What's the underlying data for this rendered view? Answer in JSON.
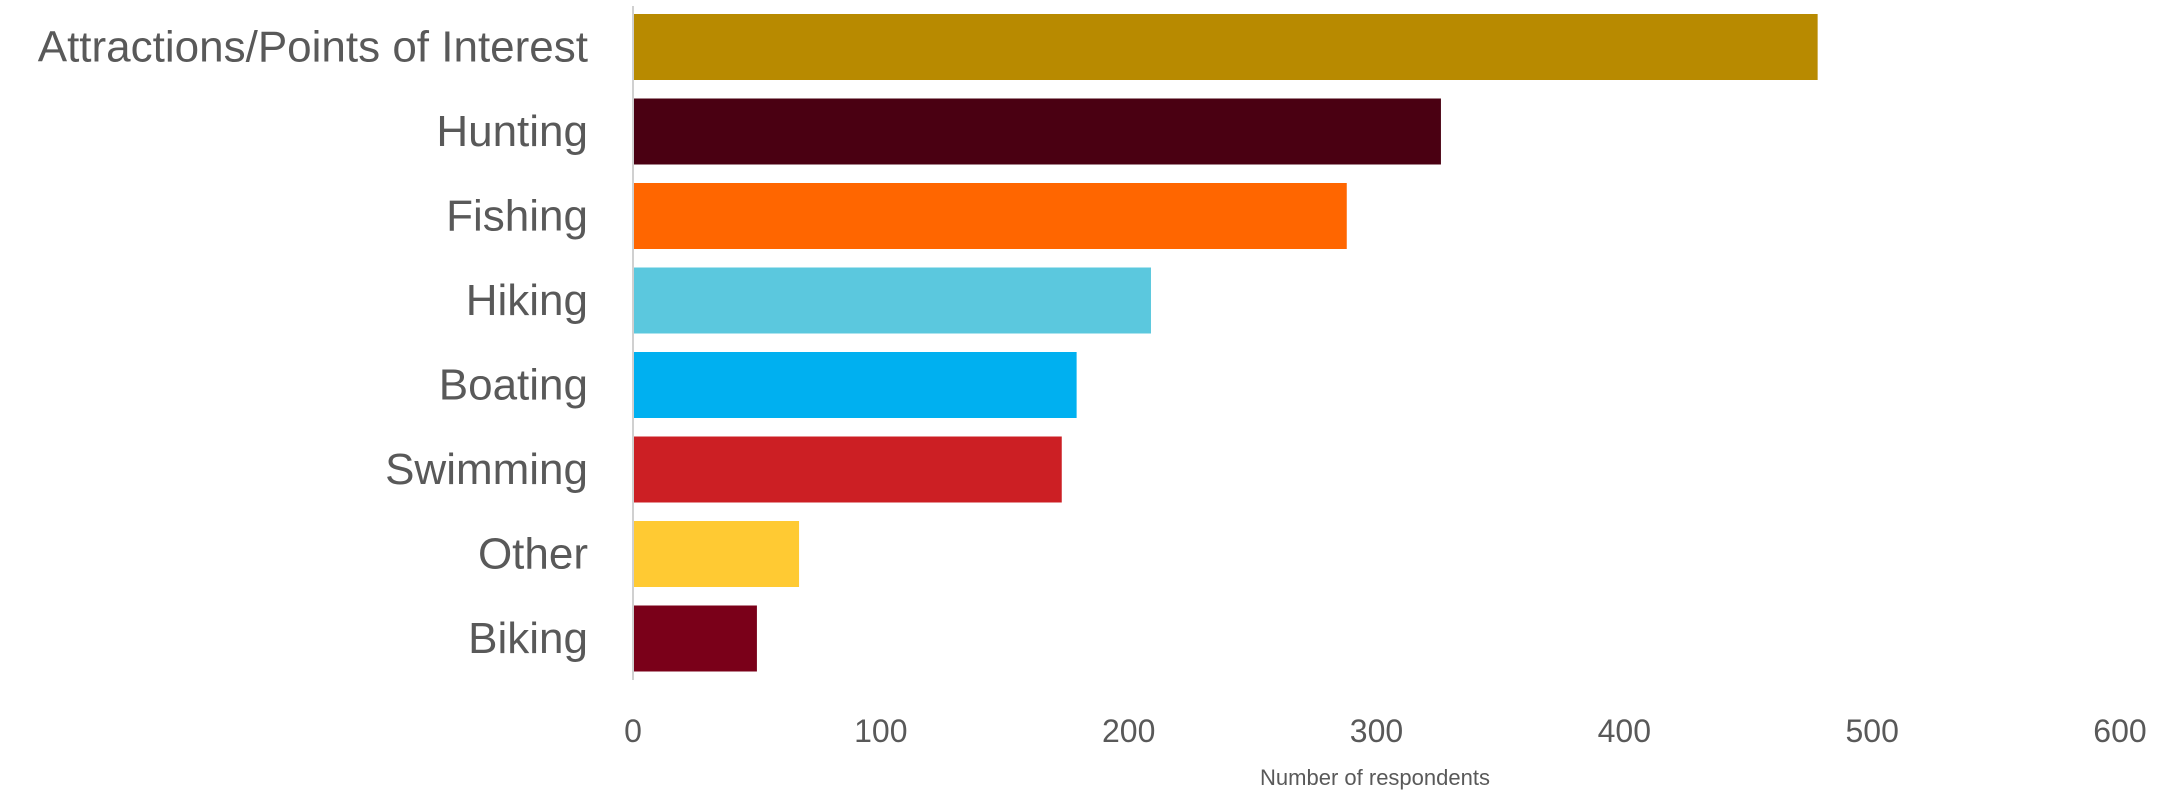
{
  "chart_data": {
    "type": "bar",
    "orientation": "horizontal",
    "title": "",
    "xlabel": "Number of respondents",
    "ylabel": "",
    "xlim": [
      0,
      600
    ],
    "x_ticks": [
      "0",
      "100",
      "200",
      "300",
      "400",
      "500",
      "600"
    ],
    "grid": false,
    "legend": "none",
    "categories": [
      "Attractions/Points of Interest",
      "Hunting",
      "Fishing",
      "Hiking",
      "Boating",
      "Swimming",
      "Other",
      "Biking"
    ],
    "values": [
      478,
      326,
      288,
      209,
      179,
      173,
      67,
      50
    ],
    "colors": [
      "#B88A00",
      "#4A0012",
      "#FF6600",
      "#5BC8DE",
      "#00B0F0",
      "#CC1F24",
      "#FFCA33",
      "#7A0019"
    ]
  }
}
